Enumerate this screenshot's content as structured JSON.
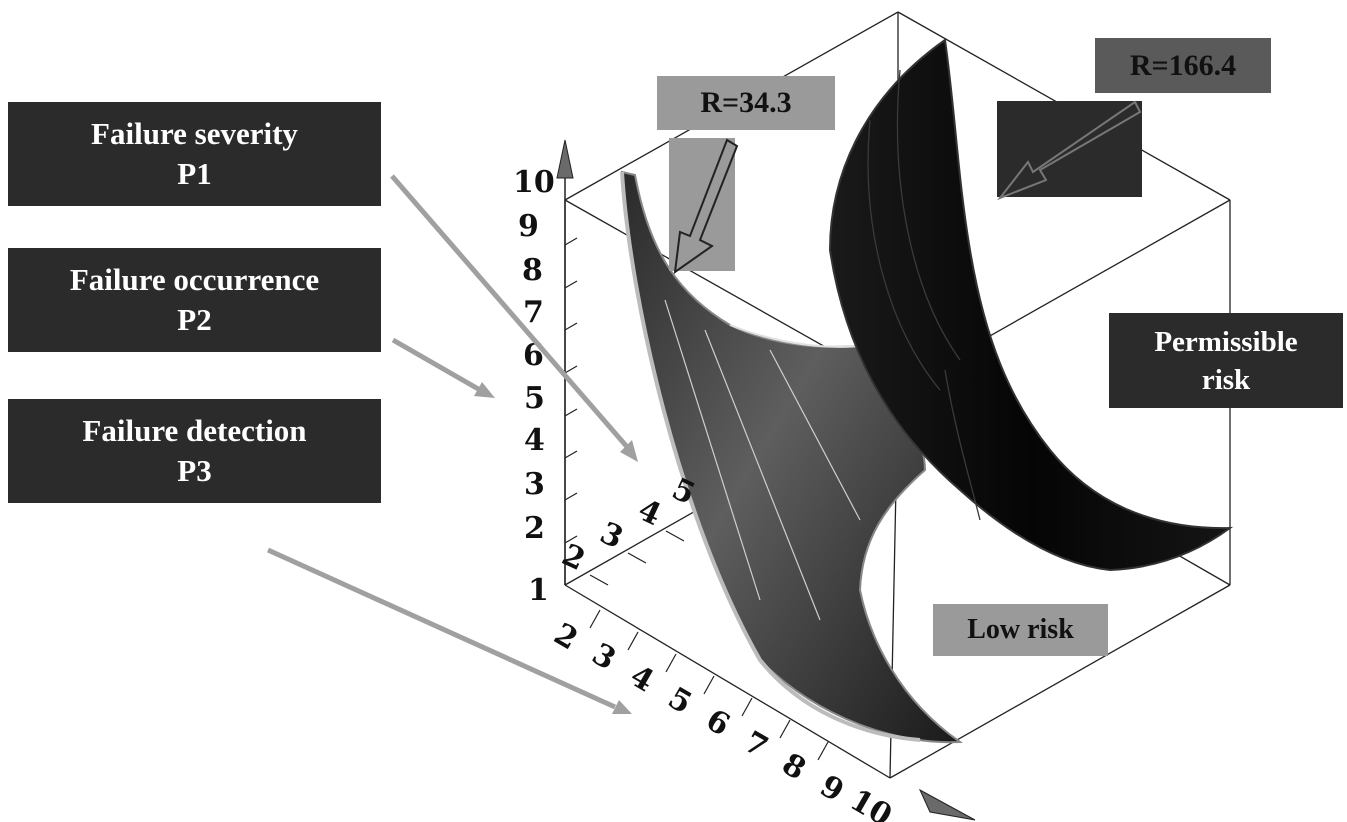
{
  "labels": {
    "severity": {
      "line1": "Failure severity",
      "line2": "P1"
    },
    "occurrence": {
      "line1": "Failure occurrence",
      "line2": "P2"
    },
    "detection": {
      "line1": "Failure detection",
      "line2": "P3"
    },
    "r_low": "R=34.3",
    "r_high": "R=166.4",
    "permissible": {
      "line1": "Permissible",
      "line2": "risk"
    },
    "low_risk": "Low risk"
  },
  "axes": {
    "vertical_ticks": [
      "10",
      "9",
      "8",
      "7",
      "6",
      "5",
      "4",
      "3",
      "2",
      "1"
    ],
    "depth_ticks": [
      "2",
      "3",
      "4",
      "5"
    ],
    "front_ticks": [
      "2",
      "3",
      "4",
      "5",
      "6",
      "7",
      "8",
      "9",
      "10"
    ]
  },
  "colors": {
    "box_dark": "#2b2b2b",
    "box_gray": "#9a9a9a",
    "surface_low": "#4a4a4a",
    "surface_high": "#0d0d0d",
    "arrow_gray": "#a0a0a0"
  }
}
